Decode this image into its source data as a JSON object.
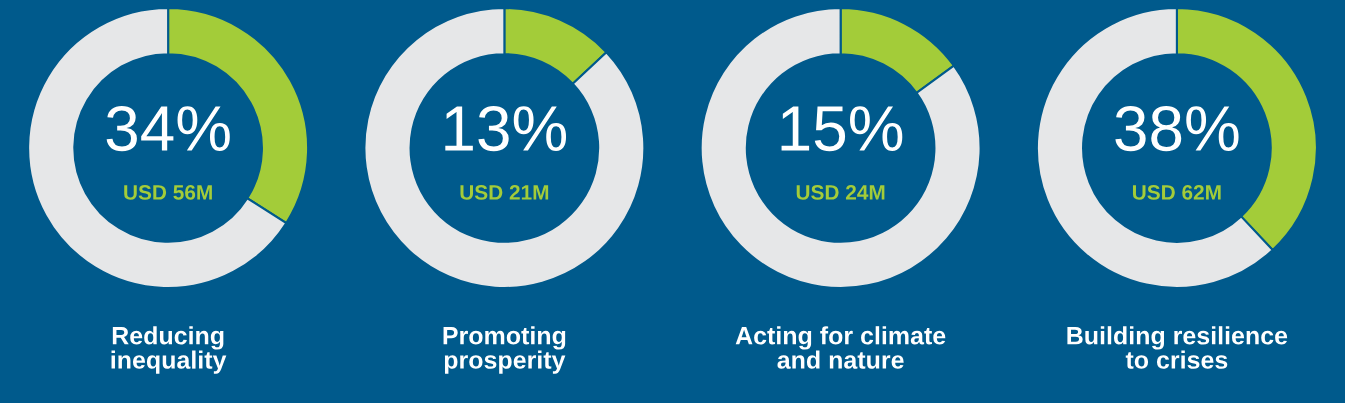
{
  "chart_data": [
    {
      "type": "donut",
      "title": "Reducing\ninequality",
      "categories": [
        null,
        null
      ],
      "values": [
        34,
        66
      ],
      "colors": [
        "#a3cc39",
        "#e6e7e8"
      ],
      "annotations": [
        "34%",
        "USD 56M"
      ]
    },
    {
      "type": "donut",
      "title": "Promoting\nprosperity",
      "categories": [
        null,
        null
      ],
      "values": [
        13,
        87
      ],
      "colors": [
        "#a3cc39",
        "#e6e7e8"
      ],
      "annotations": [
        "13%",
        "USD 21M"
      ]
    },
    {
      "type": "donut",
      "title": "Acting for climate\nand nature",
      "categories": [
        null,
        null
      ],
      "values": [
        15,
        85
      ],
      "colors": [
        "#a3cc39",
        "#e6e7e8"
      ],
      "annotations": [
        "15%",
        "USD 24M"
      ]
    },
    {
      "type": "donut",
      "title": "Building resilience\nto crises",
      "categories": [
        null,
        null
      ],
      "values": [
        38,
        62
      ],
      "colors": [
        "#a3cc39",
        "#e6e7e8"
      ],
      "annotations": [
        "38%",
        "USD 62M"
      ]
    }
  ]
}
